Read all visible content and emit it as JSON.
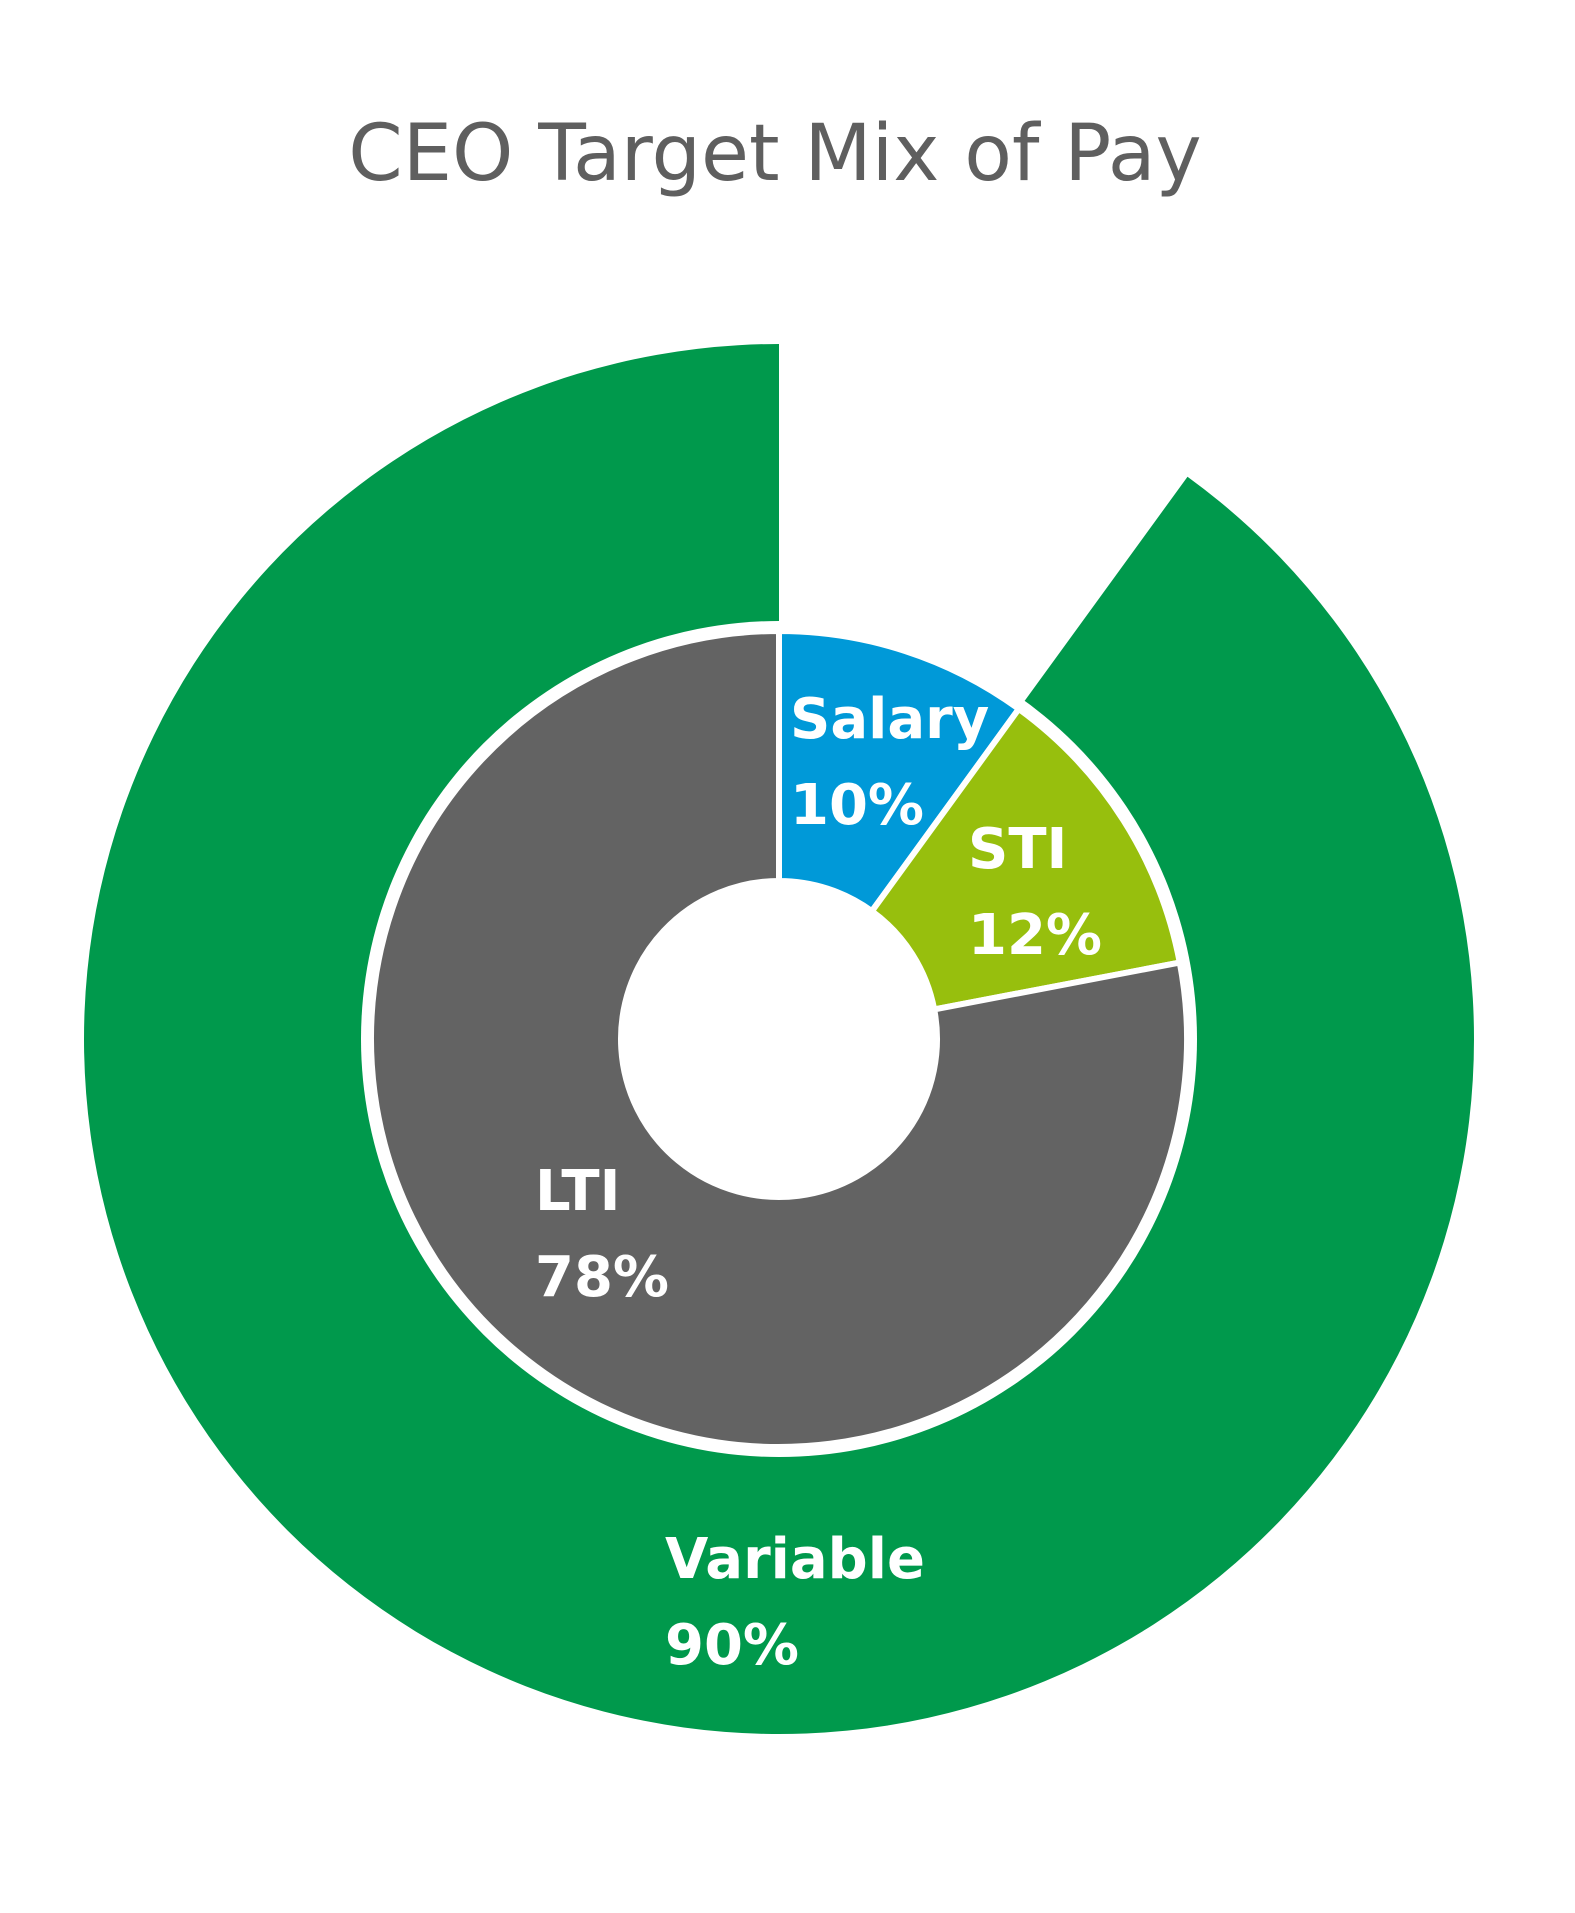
{
  "chart_data": {
    "type": "pie",
    "title": "CEO Target Mix of Pay",
    "rings": [
      {
        "ring": "outer",
        "segments": [
          {
            "label": "Variable",
            "value": 90,
            "value_label": "90%",
            "color": "#00994c"
          }
        ]
      },
      {
        "ring": "inner",
        "segments": [
          {
            "label": "Salary",
            "value": 10,
            "value_label": "10%",
            "color": "#0099d8"
          },
          {
            "label": "STI",
            "value": 12,
            "value_label": "12%",
            "color": "#97bf0d"
          },
          {
            "label": "LTI",
            "value": 78,
            "value_label": "78%",
            "color": "#636363"
          }
        ]
      }
    ],
    "background": "#ffffff",
    "hole_color": "#ffffff"
  }
}
